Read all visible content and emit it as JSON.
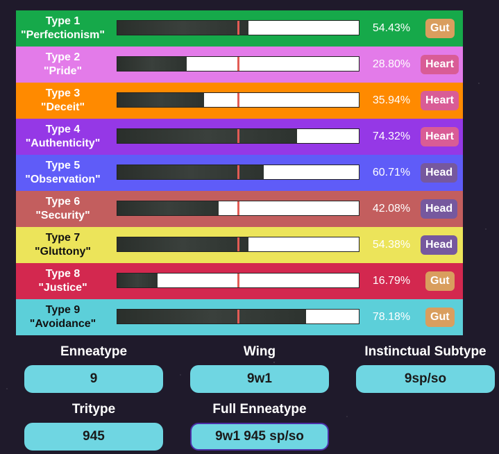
{
  "rows": [
    {
      "type": "Type 1",
      "name": "\"Perfectionism\"",
      "pct_text": "54.43%",
      "pct": 54.43,
      "center": "Gut",
      "center_class": "gut",
      "color": "#16a94a"
    },
    {
      "type": "Type 2",
      "name": "\"Pride\"",
      "pct_text": "28.80%",
      "pct": 28.8,
      "center": "Heart",
      "center_class": "heart",
      "color": "#e37be9"
    },
    {
      "type": "Type 3",
      "name": "\"Deceit\"",
      "pct_text": "35.94%",
      "pct": 35.94,
      "center": "Heart",
      "center_class": "heart",
      "color": "#ff8a00"
    },
    {
      "type": "Type 4",
      "name": "\"Authenticity\"",
      "pct_text": "74.32%",
      "pct": 74.32,
      "center": "Heart",
      "center_class": "heart",
      "color": "#9538e6"
    },
    {
      "type": "Type 5",
      "name": "\"Observation\"",
      "pct_text": "60.71%",
      "pct": 60.71,
      "center": "Head",
      "center_class": "head",
      "color": "#5f5cf8"
    },
    {
      "type": "Type 6",
      "name": "\"Security\"",
      "pct_text": "42.08%",
      "pct": 42.08,
      "center": "Head",
      "center_class": "head",
      "color": "#c35e5e"
    },
    {
      "type": "Type 7",
      "name": "\"Gluttony\"",
      "pct_text": "54.38%",
      "pct": 54.38,
      "center": "Head",
      "center_class": "head",
      "color": "#ece45a",
      "dark_text": true
    },
    {
      "type": "Type 8",
      "name": "\"Justice\"",
      "pct_text": "16.79%",
      "pct": 16.79,
      "center": "Gut",
      "center_class": "gut",
      "color": "#d3284f"
    },
    {
      "type": "Type 9",
      "name": "\"Avoidance\"",
      "pct_text": "78.18%",
      "pct": 78.18,
      "center": "Gut",
      "center_class": "gut",
      "color": "#5ccfd9",
      "dark_text": true
    }
  ],
  "results": {
    "enneatype_label": "Enneatype",
    "enneatype_value": "9",
    "wing_label": "Wing",
    "wing_value": "9w1",
    "subtype_label": "Instinctual Subtype",
    "subtype_value": "9sp/so",
    "tritype_label": "Tritype",
    "tritype_value": "945",
    "full_label": "Full Enneatype",
    "full_value": "9w1 945 sp/so"
  }
}
